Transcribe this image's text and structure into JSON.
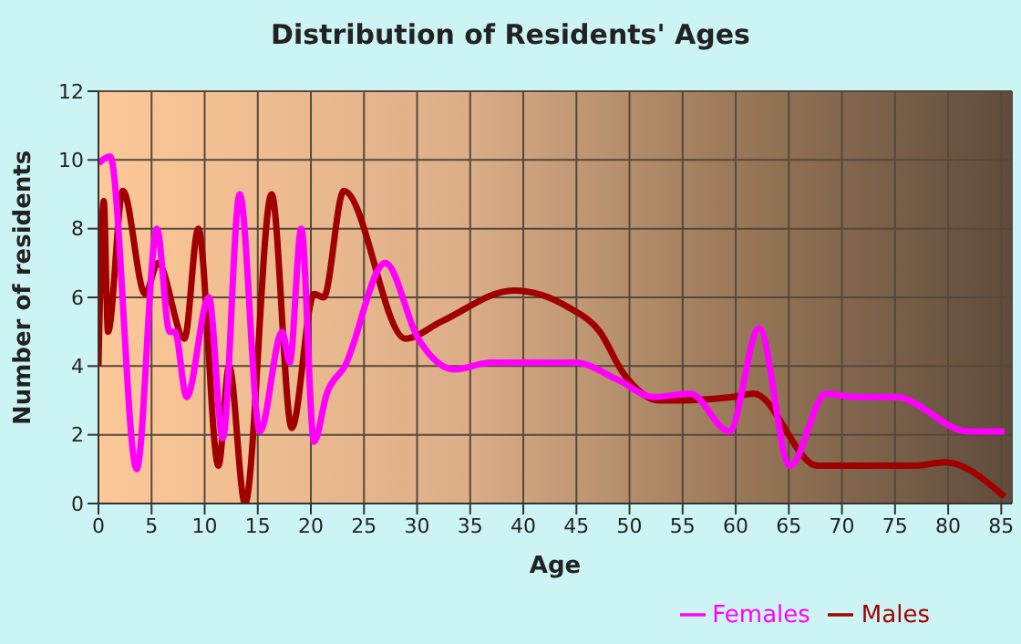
{
  "chart_data": {
    "type": "line",
    "title": "Distribution of Residents' Ages",
    "xlabel": "Age",
    "ylabel": "Number of residents",
    "xlim": [
      0,
      86
    ],
    "xticks": [
      0,
      5,
      10,
      15,
      20,
      25,
      30,
      35,
      40,
      45,
      50,
      55,
      60,
      65,
      70,
      75,
      80,
      85
    ],
    "ylim": [
      0,
      12
    ],
    "yticks": [
      0,
      2,
      4,
      6,
      8,
      10,
      12
    ],
    "grid": true,
    "legend": "bottom right",
    "marker": "none",
    "line_style": "solid",
    "series": [
      {
        "name": "Males",
        "color": "#a00000",
        "x": [
          0,
          0.5,
          0.9,
          2.3,
          4.4,
          5.6,
          8.1,
          9.4,
          11.3,
          12.3,
          13.8,
          16.3,
          18.2,
          20.3,
          21.2,
          23.1,
          28.9,
          32.3,
          39.1,
          44.3,
          47.2,
          49.4,
          52.8,
          54,
          59.7,
          61.7,
          67.7,
          76.8,
          79.7,
          85.3
        ],
        "values": [
          4,
          8.8,
          5,
          9.1,
          6.1,
          7,
          4.8,
          8,
          1.1,
          4,
          0,
          9,
          2.2,
          6.1,
          6,
          9.1,
          4.8,
          5.3,
          6.2,
          5.7,
          5,
          3.8,
          3,
          3,
          3.1,
          3.2,
          1.1,
          1.1,
          1.2,
          0.2
        ]
      },
      {
        "name": "Females",
        "color": "#ff00ff",
        "x": [
          0,
          1.1,
          3.6,
          5.5,
          6.7,
          7.2,
          8.3,
          10.4,
          11.7,
          13.3,
          15.2,
          17.3,
          18,
          19.1,
          20.3,
          21.5,
          23.2,
          27,
          30.1,
          33.5,
          36.9,
          44.9,
          48.9,
          52.3,
          55.7,
          59.4,
          62.2,
          65.1,
          68.5,
          71.1,
          75,
          81.9,
          85.3
        ],
        "values": [
          9.9,
          10.1,
          1,
          8,
          5,
          5,
          3.1,
          6,
          1.9,
          9,
          2.1,
          5,
          4.1,
          8,
          1.8,
          3.2,
          4,
          7,
          4.8,
          3.9,
          4.1,
          4.1,
          3.6,
          3.1,
          3.2,
          2.1,
          5.1,
          1.1,
          3.2,
          3.1,
          3.1,
          2.1,
          2.1
        ]
      }
    ]
  }
}
